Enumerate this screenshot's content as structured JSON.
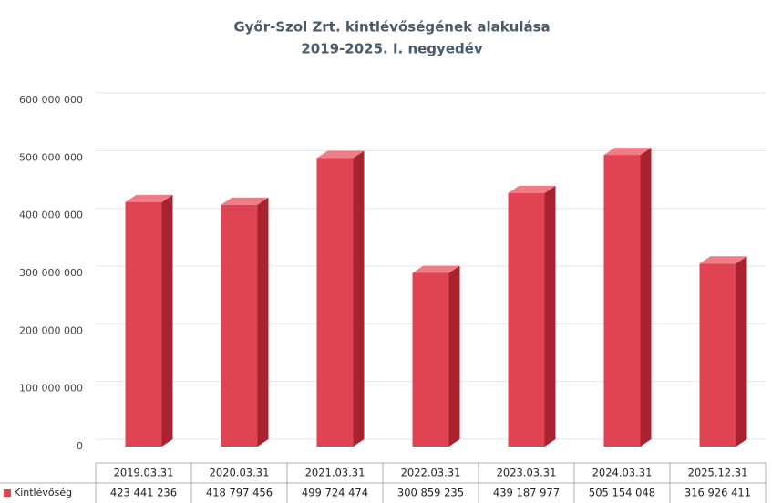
{
  "chart_data": {
    "type": "bar",
    "title": "Győr-Szol Zrt. kintlévőségének alakulása",
    "subtitle": "2019-2025. I. negyedév",
    "categories": [
      "2019.03.31",
      "2020.03.31",
      "2021.03.31",
      "2022.03.31",
      "2023.03.31",
      "2024.03.31",
      "2025.12.31"
    ],
    "series": [
      {
        "name": "Kintlévőség",
        "color": "#e04452",
        "values": [
          423441236,
          418797456,
          499724474,
          300859235,
          439187977,
          505154048,
          316926411
        ],
        "value_labels": [
          "423 441 236",
          "418 797 456",
          "499 724 474",
          "300 859 235",
          "439 187 977",
          "505 154 048",
          "316 926 411"
        ]
      }
    ],
    "ylim": [
      0,
      600000000
    ],
    "yticks": [
      0,
      {
        "value": 100000000,
        "label": "100 000 000"
      },
      {
        "value": 200000000,
        "label": "200 000 000"
      },
      {
        "value": 300000000,
        "label": "300 000 000"
      },
      {
        "value": 400000000,
        "label": "400 000 000"
      },
      {
        "value": 500000000,
        "label": "500 000 000"
      },
      {
        "value": 600000000,
        "label": "600 000 000"
      }
    ],
    "grid": true
  }
}
